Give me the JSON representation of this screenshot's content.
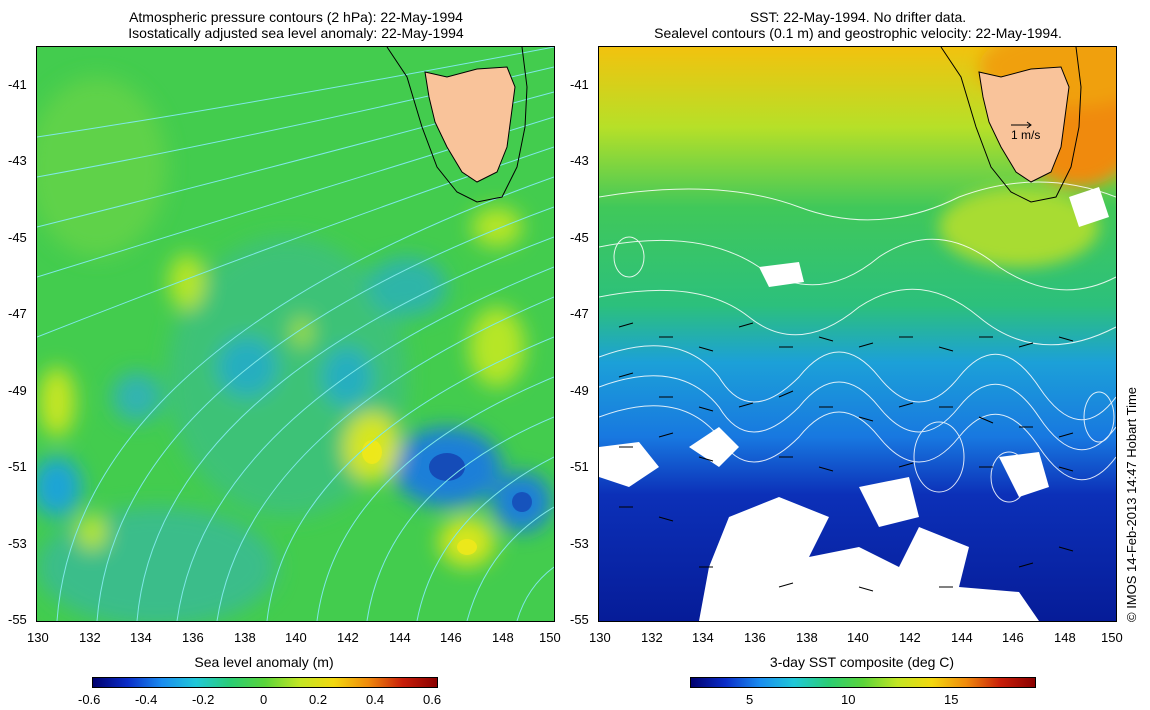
{
  "left_panel": {
    "title_line1": "Atmospheric pressure contours (2 hPa): 22-May-1994",
    "title_line2": "Isostatically adjusted sea level anomaly: 22-May-1994",
    "x_ticks": [
      "130",
      "132",
      "134",
      "136",
      "138",
      "140",
      "142",
      "144",
      "146",
      "148",
      "150"
    ],
    "y_ticks": [
      "-41",
      "-43",
      "-45",
      "-47",
      "-49",
      "-51",
      "-53",
      "-55"
    ],
    "colorbar": {
      "label": "Sea level anomaly (m)",
      "ticks": [
        "-0.6",
        "-0.4",
        "-0.2",
        "0",
        "0.2",
        "0.4",
        "0.6"
      ],
      "range": [
        -0.6,
        0.6
      ]
    }
  },
  "right_panel": {
    "title_line1": "SST: 22-May-1994. No drifter data.",
    "title_line2": "Sealevel contours (0.1 m) and geostrophic velocity: 22-May-1994.",
    "x_ticks": [
      "130",
      "132",
      "134",
      "136",
      "138",
      "140",
      "142",
      "144",
      "146",
      "148",
      "150"
    ],
    "y_ticks": [
      "-41",
      "-43",
      "-45",
      "-47",
      "-49",
      "-51",
      "-53",
      "-55"
    ],
    "scale_arrow_label": "1 m/s",
    "colorbar": {
      "label": "3-day SST composite (deg C)",
      "ticks": [
        "5",
        "10",
        "15"
      ]
    }
  },
  "credit": "© IMOS 14-Feb-2013 14:47 Hobart Time",
  "colors": {
    "land": "#f9c39a",
    "contour_left": "#7fe8e8",
    "contour_right": "#ffffff",
    "ocean_mid": "#3fcc55"
  }
}
